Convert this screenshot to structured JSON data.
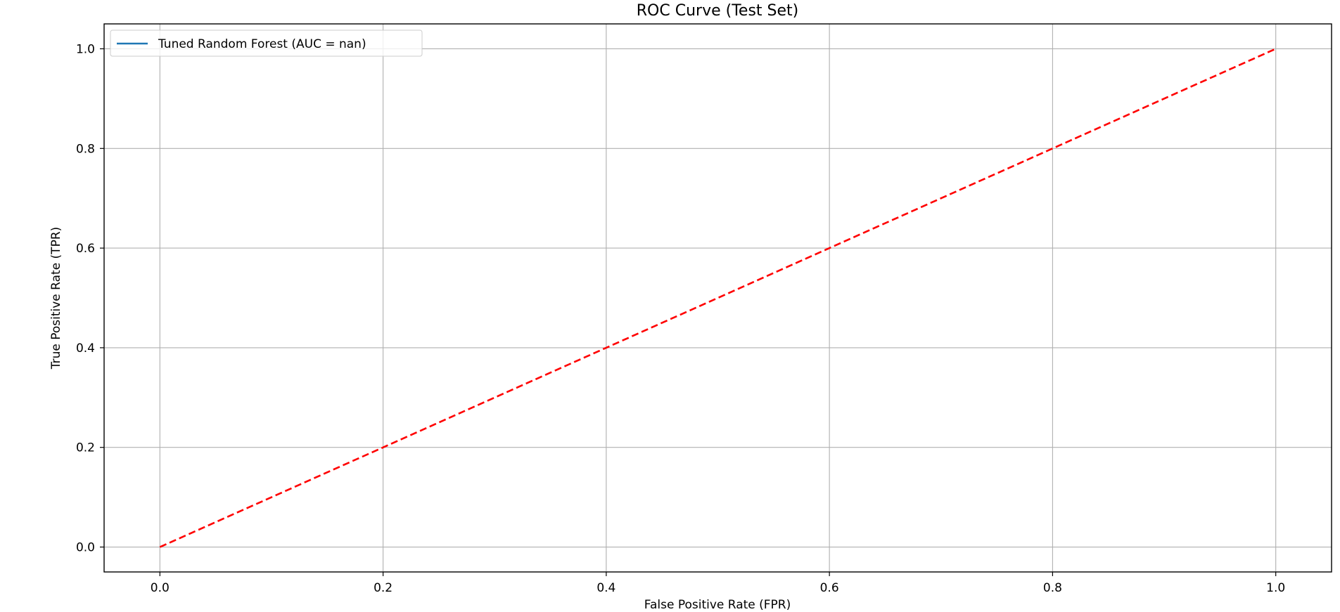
{
  "chart_data": {
    "type": "line",
    "title": "ROC Curve (Test Set)",
    "xlabel": "False Positive Rate (FPR)",
    "ylabel": "True Positive Rate (TPR)",
    "xlim": [
      -0.05,
      1.05
    ],
    "ylim": [
      -0.05,
      1.05
    ],
    "x_ticks": [
      0.0,
      0.2,
      0.4,
      0.6,
      0.8,
      1.0
    ],
    "y_ticks": [
      0.0,
      0.2,
      0.4,
      0.6,
      0.8,
      1.0
    ],
    "x_tick_labels": [
      "0.0",
      "0.2",
      "0.4",
      "0.6",
      "0.8",
      "1.0"
    ],
    "y_tick_labels": [
      "0.0",
      "0.2",
      "0.4",
      "0.6",
      "0.8",
      "1.0"
    ],
    "grid": true,
    "legend_position": "top-left",
    "series": [
      {
        "name": "Tuned Random Forest (AUC = nan)",
        "color": "#1f77b4",
        "line_style": "solid",
        "x": [],
        "y": []
      },
      {
        "color": "#ff0000",
        "line_style": "dashed",
        "x": [
          0,
          1
        ],
        "y": [
          0,
          1
        ]
      }
    ]
  }
}
